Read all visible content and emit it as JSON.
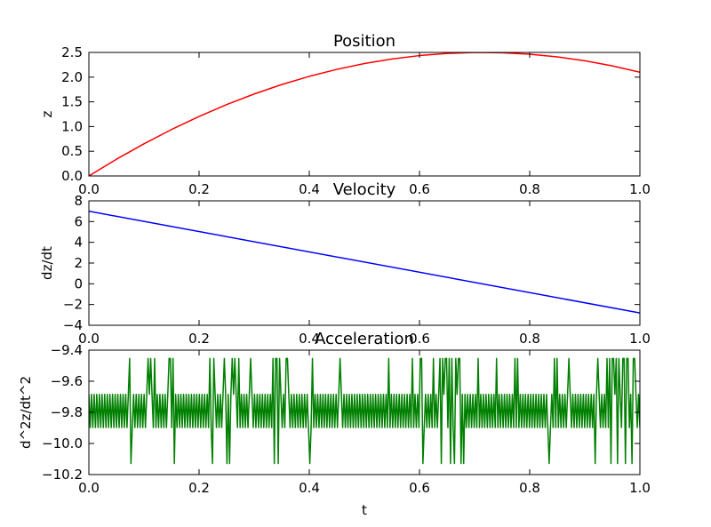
{
  "chart_data": [
    {
      "type": "line",
      "title": "Position",
      "xlabel": "",
      "ylabel": "z",
      "xlim": [
        0.0,
        1.0
      ],
      "ylim": [
        0.0,
        2.5
      ],
      "xticks": [
        "0.0",
        "0.2",
        "0.4",
        "0.6",
        "0.8",
        "1.0"
      ],
      "yticks": [
        "0.0",
        "0.5",
        "1.0",
        "1.5",
        "2.0",
        "2.5"
      ],
      "grid": false,
      "series": [
        {
          "color": "#ff0000",
          "x": [
            0.0,
            0.05,
            0.1,
            0.15,
            0.2,
            0.25,
            0.3,
            0.35,
            0.4,
            0.45,
            0.5,
            0.55,
            0.6,
            0.65,
            0.7,
            0.75,
            0.8,
            0.85,
            0.9,
            0.95,
            1.0
          ],
          "y": [
            0.0,
            0.338,
            0.651,
            0.94,
            1.204,
            1.444,
            1.659,
            1.85,
            2.016,
            2.157,
            2.275,
            2.367,
            2.436,
            2.48,
            2.499,
            2.494,
            2.464,
            2.41,
            2.331,
            2.228,
            2.1
          ]
        }
      ]
    },
    {
      "type": "line",
      "title": "Velocity",
      "xlabel": "",
      "ylabel": "dz/dt",
      "xlim": [
        0.0,
        1.0
      ],
      "ylim": [
        -4,
        8
      ],
      "xticks": [
        "0.0",
        "0.2",
        "0.4",
        "0.6",
        "0.8",
        "1.0"
      ],
      "yticks": [
        "−4",
        "−2",
        "0",
        "2",
        "4",
        "6",
        "8"
      ],
      "grid": false,
      "series": [
        {
          "color": "#0000ff",
          "x": [
            0.0,
            1.0
          ],
          "y": [
            7.0,
            -2.81
          ]
        }
      ]
    },
    {
      "type": "line",
      "title": "Acceleration",
      "xlabel": "t",
      "ylabel": "d^2z/dt^2",
      "xlim": [
        0.0,
        1.0
      ],
      "ylim": [
        -10.3,
        -9.4
      ],
      "xticks": [
        "0.0",
        "0.2",
        "0.4",
        "0.6",
        "0.8",
        "1.0"
      ],
      "yticks": [
        "−10.2",
        "−10.0",
        "−9.8",
        "−9.6",
        "−9.4"
      ],
      "grid": false,
      "series": [
        {
          "color": "#008000",
          "base_levels": [
            -9.72,
            -9.96
          ],
          "upper_spike": -9.46,
          "lower_spike": -10.22,
          "upper_spike_x": [
            0.074,
            0.108,
            0.111,
            0.119,
            0.146,
            0.149,
            0.153,
            0.22,
            0.226,
            0.245,
            0.26,
            0.266,
            0.272,
            0.294,
            0.333,
            0.339,
            0.342,
            0.347,
            0.359,
            0.361,
            0.405,
            0.456,
            0.545,
            0.586,
            0.601,
            0.603,
            0.626,
            0.638,
            0.642,
            0.646,
            0.649,
            0.654,
            0.658,
            0.666,
            0.67,
            0.674,
            0.707,
            0.741,
            0.773,
            0.777,
            0.845,
            0.85,
            0.87,
            0.923,
            0.941,
            0.945,
            0.949,
            0.953,
            0.958,
            0.962,
            0.968,
            0.972,
            0.975,
            0.979,
            0.987,
            0.991
          ],
          "lower_spike_x": [
            0.074,
            0.154,
            0.224,
            0.25,
            0.256,
            0.338,
            0.345,
            0.402,
            0.603,
            0.642,
            0.654,
            0.665,
            0.673,
            0.68,
            0.836,
            0.919,
            0.951,
            0.96,
            0.975,
            0.989
          ]
        }
      ]
    }
  ]
}
